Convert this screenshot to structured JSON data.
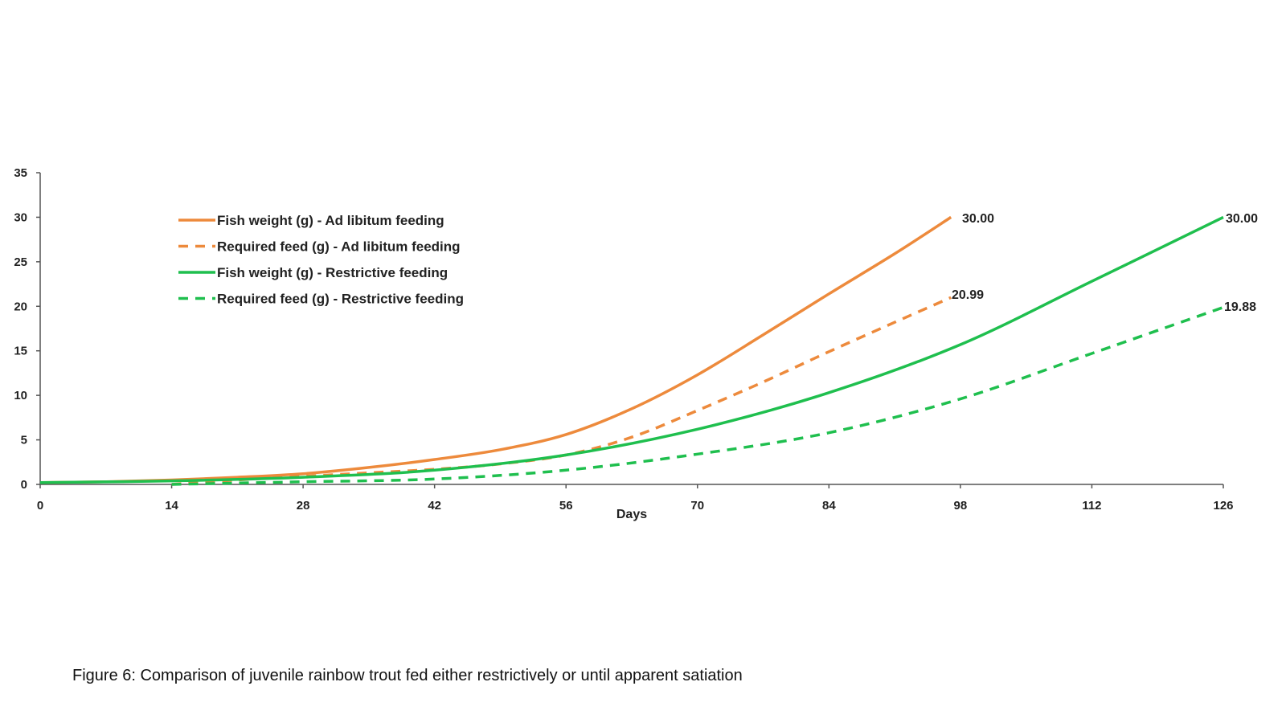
{
  "chart_data": {
    "type": "line",
    "xlabel": "Days",
    "ylabel": "",
    "xlim": [
      0,
      126
    ],
    "ylim": [
      0,
      35
    ],
    "x_ticks": [
      "0",
      "14",
      "28",
      "42",
      "56",
      "70",
      "84",
      "98",
      "112",
      "126"
    ],
    "y_ticks": [
      "0",
      "5",
      "10",
      "15",
      "20",
      "25",
      "30",
      "35"
    ],
    "legend_position": "top-left",
    "grid": false,
    "series": [
      {
        "name": "Fish weight (g) - Ad libitum feeding",
        "color": "#ed8a3c",
        "style": "solid",
        "x": [
          0,
          7,
          14,
          21,
          28,
          35,
          42,
          49,
          56,
          63,
          70,
          77,
          84,
          91,
          97
        ],
        "y": [
          0.2,
          0.3,
          0.5,
          0.8,
          1.2,
          1.9,
          2.8,
          3.9,
          5.6,
          8.5,
          12.3,
          16.8,
          21.4,
          25.9,
          30.0
        ],
        "end_label": "30.00"
      },
      {
        "name": "Required feed (g) - Ad libitum feeding",
        "color": "#ed8a3c",
        "style": "dashed",
        "x": [
          14,
          21,
          28,
          35,
          42,
          49,
          56,
          63,
          70,
          77,
          84,
          91,
          97
        ],
        "y": [
          0.0,
          0.5,
          0.9,
          1.3,
          1.7,
          2.3,
          3.3,
          5.3,
          8.3,
          11.5,
          14.9,
          18.2,
          20.99
        ],
        "end_label": "20.99"
      },
      {
        "name": "Fish weight (g) - Restrictive feeding",
        "color": "#1fbf4e",
        "style": "solid",
        "x": [
          0,
          14,
          28,
          42,
          56,
          70,
          84,
          98,
          112,
          126
        ],
        "y": [
          0.2,
          0.4,
          0.8,
          1.6,
          3.3,
          6.2,
          10.3,
          15.7,
          22.8,
          30.0
        ],
        "end_label": "30.00"
      },
      {
        "name": "Required feed (g) - Restrictive feeding",
        "color": "#1fbf4e",
        "style": "dashed",
        "x": [
          14,
          28,
          42,
          56,
          70,
          84,
          98,
          112,
          126
        ],
        "y": [
          0.0,
          0.3,
          0.6,
          1.6,
          3.4,
          5.8,
          9.6,
          14.7,
          19.88
        ],
        "end_label": "19.88"
      }
    ]
  },
  "caption": "Figure 6: Comparison of juvenile rainbow trout fed either restrictively or until apparent satiation"
}
